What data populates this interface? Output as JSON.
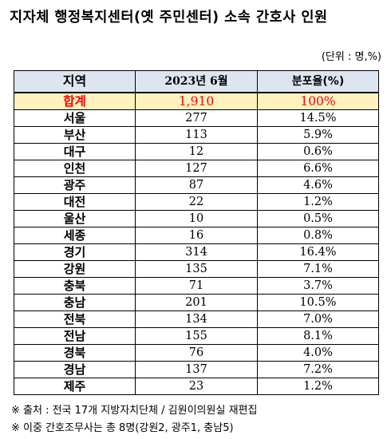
{
  "title": "지자체 행정복지센터(옛 주민센터) 소속 간호사 인원",
  "unit": "(단위 : 명,%)",
  "table": {
    "headers": [
      "지역",
      "2023년 6월",
      "분포율(%)"
    ],
    "total": {
      "region": "합계",
      "count": "1,910",
      "share": "100%"
    },
    "rows": [
      {
        "region": "서울",
        "count": "277",
        "share": "14.5%"
      },
      {
        "region": "부산",
        "count": "113",
        "share": "5.9%"
      },
      {
        "region": "대구",
        "count": "12",
        "share": "0.6%"
      },
      {
        "region": "인천",
        "count": "127",
        "share": "6.6%"
      },
      {
        "region": "광주",
        "count": "87",
        "share": "4.6%"
      },
      {
        "region": "대전",
        "count": "22",
        "share": "1.2%"
      },
      {
        "region": "울산",
        "count": "10",
        "share": "0.5%"
      },
      {
        "region": "세종",
        "count": "16",
        "share": "0.8%"
      },
      {
        "region": "경기",
        "count": "314",
        "share": "16.4%"
      },
      {
        "region": "강원",
        "count": "135",
        "share": "7.1%"
      },
      {
        "region": "충북",
        "count": "71",
        "share": "3.7%"
      },
      {
        "region": "충남",
        "count": "201",
        "share": "10.5%"
      },
      {
        "region": "전북",
        "count": "134",
        "share": "7.0%"
      },
      {
        "region": "전남",
        "count": "155",
        "share": "8.1%"
      },
      {
        "region": "경북",
        "count": "76",
        "share": "4.0%"
      },
      {
        "region": "경남",
        "count": "137",
        "share": "7.2%"
      },
      {
        "region": "제주",
        "count": "23",
        "share": "1.2%"
      }
    ]
  },
  "notes": [
    "※ 출처 : 전국 17개 지방자치단체 / 김원이의원실 재편집",
    "※ 이중 간호조무사는 총 8명(강원2, 광주1, 충남5)"
  ],
  "colors": {
    "header_bg": "#dde6f0",
    "total_bg": "#fff2bf",
    "total_text": "#ff0000"
  }
}
